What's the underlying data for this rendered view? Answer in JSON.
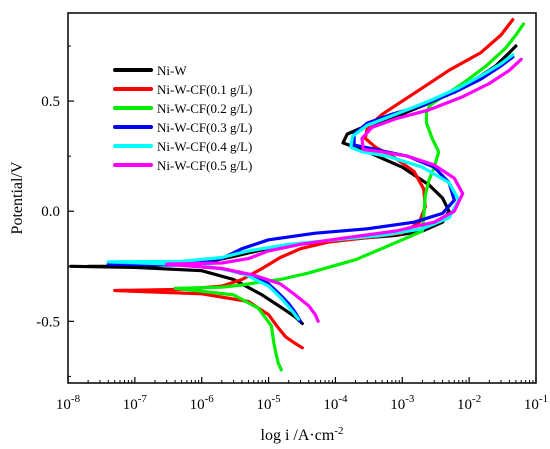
{
  "chart_data": {
    "type": "line",
    "title": "",
    "xlabel": "log i /A·cm",
    "xlabel_sup": "-2",
    "ylabel": "Potential/V",
    "x_scale": "log",
    "xlim": [
      1e-08,
      0.1
    ],
    "ylim": [
      -0.78,
      0.9
    ],
    "grid": false,
    "legend_position": "top-left",
    "x_ticks": [
      {
        "value": 1e-08,
        "base": "10",
        "exp": "-8"
      },
      {
        "value": 1e-07,
        "base": "10",
        "exp": "-7"
      },
      {
        "value": 1e-06,
        "base": "10",
        "exp": "-6"
      },
      {
        "value": 1e-05,
        "base": "10",
        "exp": "-5"
      },
      {
        "value": 0.0001,
        "base": "10",
        "exp": "-4"
      },
      {
        "value": 0.001,
        "base": "10",
        "exp": "-3"
      },
      {
        "value": 0.01,
        "base": "10",
        "exp": "-2"
      },
      {
        "value": 0.1,
        "base": "10",
        "exp": "-1"
      }
    ],
    "y_ticks": [
      {
        "value": -0.5,
        "label": "-0.5"
      },
      {
        "value": 0.0,
        "label": "0.0"
      },
      {
        "value": 0.5,
        "label": "0.5"
      }
    ],
    "series": [
      {
        "name": "Ni-W",
        "color": "#000000",
        "x": [
          1.1e-08,
          1e-07,
          1e-06,
          3e-06,
          8e-06,
          1.6e-05,
          2.5e-05,
          3.2e-05,
          null,
          2e-08,
          1e-07,
          1e-06,
          3e-06,
          8e-06,
          2e-05,
          6e-05,
          0.0002,
          0.0008,
          0.002,
          0.004,
          0.005,
          0.004,
          0.0025,
          0.001,
          0.0003,
          0.00013,
          0.00015,
          0.0003,
          0.0008,
          0.003,
          0.01,
          0.025,
          0.04,
          0.05
        ],
        "y": [
          -0.25,
          -0.255,
          -0.27,
          -0.31,
          -0.38,
          -0.44,
          -0.48,
          -0.51,
          null,
          -0.25,
          -0.25,
          -0.235,
          -0.205,
          -0.175,
          -0.155,
          -0.14,
          -0.125,
          -0.11,
          -0.09,
          -0.05,
          0.0,
          0.06,
          0.12,
          0.2,
          0.27,
          0.31,
          0.35,
          0.39,
          0.43,
          0.5,
          0.58,
          0.66,
          0.72,
          0.75
        ]
      },
      {
        "name": "Ni-W-CF(0.1 g/L)",
        "color": "#ff0000",
        "x": [
          5e-08,
          1e-06,
          5e-06,
          1e-05,
          1.4e-05,
          1.8e-05,
          2.5e-05,
          3.2e-05,
          null,
          5e-08,
          5e-07,
          2e-06,
          4e-06,
          8e-06,
          1.5e-05,
          3e-05,
          8e-05,
          0.0003,
          0.001,
          0.0018,
          0.0022,
          0.0021,
          0.0015,
          0.0008,
          0.0004,
          0.00028,
          0.0003,
          0.0005,
          0.001,
          0.002,
          0.005,
          0.015,
          0.03,
          0.045
        ],
        "y": [
          -0.36,
          -0.375,
          -0.41,
          -0.47,
          -0.53,
          -0.57,
          -0.6,
          -0.62,
          null,
          -0.36,
          -0.355,
          -0.34,
          -0.31,
          -0.26,
          -0.21,
          -0.17,
          -0.14,
          -0.12,
          -0.1,
          -0.05,
          0.02,
          0.1,
          0.18,
          0.24,
          0.29,
          0.33,
          0.38,
          0.44,
          0.5,
          0.56,
          0.64,
          0.72,
          0.8,
          0.87
        ]
      },
      {
        "name": "Ni-W-CF(0.2 g/L)",
        "color": "#00ee00",
        "x": [
          4e-07,
          3e-06,
          7e-06,
          1.1e-05,
          1.2e-05,
          1.3e-05,
          1.4e-05,
          1.55e-05,
          null,
          4e-07,
          2e-06,
          4e-06,
          8e-06,
          1.5e-05,
          4e-05,
          0.0002,
          0.001,
          0.002,
          0.0021,
          0.0022,
          0.0025,
          0.003,
          0.0035,
          0.0028,
          0.0023,
          0.0023,
          0.0026,
          0.004,
          0.008,
          0.018,
          0.035,
          0.05,
          0.065
        ],
        "y": [
          -0.35,
          -0.38,
          -0.44,
          -0.52,
          -0.6,
          -0.65,
          -0.69,
          -0.72,
          null,
          -0.35,
          -0.345,
          -0.335,
          -0.32,
          -0.31,
          -0.28,
          -0.22,
          -0.13,
          -0.09,
          -0.02,
          0.07,
          0.14,
          0.2,
          0.27,
          0.33,
          0.4,
          0.45,
          0.48,
          0.52,
          0.58,
          0.66,
          0.74,
          0.8,
          0.85
        ]
      },
      {
        "name": "Ni-W-CF(0.3 g/L)",
        "color": "#0000ff",
        "x": [
          4e-08,
          5e-07,
          2e-06,
          5e-06,
          1e-05,
          1.5e-05,
          2e-05,
          2.5e-05,
          3e-05,
          null,
          4e-08,
          5e-07,
          2e-06,
          4e-06,
          1e-05,
          5e-05,
          0.0003,
          0.0015,
          0.004,
          0.006,
          0.005,
          0.003,
          0.0012,
          0.0004,
          0.00019,
          0.00019,
          0.0003,
          0.0007,
          0.002,
          0.006,
          0.015,
          0.03,
          0.045
        ],
        "y": [
          -0.24,
          -0.245,
          -0.26,
          -0.29,
          -0.33,
          -0.38,
          -0.42,
          -0.46,
          -0.5,
          null,
          -0.24,
          -0.235,
          -0.215,
          -0.17,
          -0.13,
          -0.1,
          -0.08,
          -0.05,
          -0.01,
          0.05,
          0.13,
          0.2,
          0.25,
          0.28,
          0.3,
          0.35,
          0.4,
          0.44,
          0.48,
          0.54,
          0.6,
          0.66,
          0.7
        ]
      },
      {
        "name": "Ni-W-CF(0.4 g/L)",
        "color": "#00ffff",
        "x": [
          4e-08,
          1e-06,
          4e-06,
          1e-05,
          1.6e-05,
          2.2e-05,
          2.8e-05,
          null,
          4e-08,
          5e-07,
          2e-06,
          5e-06,
          2e-05,
          0.0001,
          0.0005,
          0.002,
          0.005,
          0.007,
          0.005,
          0.002,
          0.0006,
          0.00025,
          0.00017,
          0.00018,
          0.0003,
          0.0008,
          0.0025,
          0.007,
          0.016,
          0.03,
          0.045
        ],
        "y": [
          -0.23,
          -0.245,
          -0.28,
          -0.34,
          -0.4,
          -0.45,
          -0.49,
          null,
          -0.23,
          -0.228,
          -0.21,
          -0.18,
          -0.15,
          -0.13,
          -0.11,
          -0.08,
          -0.03,
          0.05,
          0.13,
          0.2,
          0.25,
          0.27,
          0.29,
          0.34,
          0.39,
          0.44,
          0.5,
          0.56,
          0.62,
          0.67,
          0.71
        ]
      },
      {
        "name": "Ni-W-CF(0.5 g/L)",
        "color": "#ff00ff",
        "x": [
          3e-07,
          2e-06,
          6e-06,
          1.5e-05,
          2.5e-05,
          4e-05,
          5e-05,
          5.5e-05,
          null,
          3e-07,
          2e-06,
          5e-06,
          1e-05,
          3e-05,
          0.00015,
          0.0008,
          0.003,
          0.006,
          0.008,
          0.006,
          0.003,
          0.0012,
          0.0005,
          0.00026,
          0.00025,
          0.00035,
          0.0008,
          0.0025,
          0.008,
          0.02,
          0.04,
          0.06
        ],
        "y": [
          -0.24,
          -0.26,
          -0.29,
          -0.33,
          -0.38,
          -0.43,
          -0.47,
          -0.5,
          null,
          -0.24,
          -0.235,
          -0.215,
          -0.18,
          -0.15,
          -0.12,
          -0.09,
          -0.05,
          0.0,
          0.08,
          0.15,
          0.21,
          0.25,
          0.27,
          0.28,
          0.33,
          0.38,
          0.42,
          0.46,
          0.52,
          0.58,
          0.64,
          0.69
        ]
      }
    ]
  }
}
